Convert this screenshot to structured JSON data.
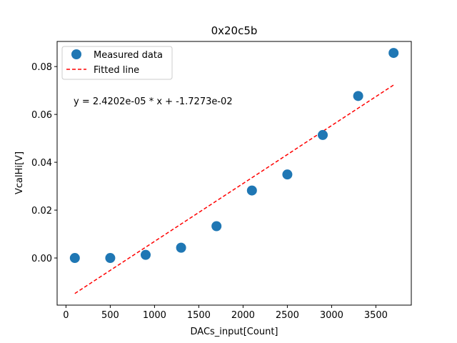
{
  "chart_data": {
    "type": "scatter",
    "title": "0x20c5b",
    "xlabel": "DACs_input[Count]",
    "ylabel": "VcalHi[V]",
    "xlim": [
      -100,
      3900
    ],
    "ylim": [
      -0.0197,
      0.0905
    ],
    "x_ticks": [
      0,
      500,
      1000,
      1500,
      2000,
      2500,
      3000,
      3500
    ],
    "x_tick_labels": [
      "0",
      "500",
      "1000",
      "1500",
      "2000",
      "2500",
      "3000",
      "3500"
    ],
    "y_ticks": [
      0.0,
      0.02,
      0.04,
      0.06,
      0.08
    ],
    "y_tick_labels": [
      "0.00",
      "0.02",
      "0.04",
      "0.06",
      "0.08"
    ],
    "grid": false,
    "legend_position": "top-left",
    "series": [
      {
        "name": "Measured data",
        "kind": "scatter",
        "color": "#1f77b4",
        "x": [
          100,
          500,
          900,
          1300,
          1700,
          2100,
          2500,
          2900,
          3300,
          3700
        ],
        "y": [
          0.0,
          0.0,
          0.0013,
          0.0043,
          0.0133,
          0.0282,
          0.0349,
          0.0514,
          0.0677,
          0.0857
        ]
      },
      {
        "name": "Fitted line",
        "kind": "line",
        "style": "dashed",
        "color": "#ff0000",
        "x": [
          100,
          3700
        ],
        "y": [
          -0.01485,
          0.07228
        ]
      }
    ],
    "annotation": "y = 2.4202e-05 * x + -1.7273e-02"
  }
}
